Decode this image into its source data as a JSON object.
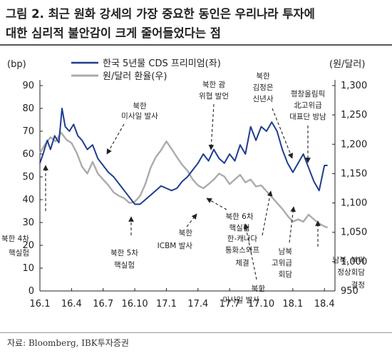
{
  "figure": {
    "title_line1": "그림 2. 최근 원화 강세의 가장 중요한 동인은 우리나라 투자에",
    "title_line2": "대한 심리적 불안감이 크게 줄어들었다는 점",
    "source": "자료: Bloomberg, IBK투자증권"
  },
  "chart_data": {
    "type": "line",
    "x_tick_labels": [
      "16.1",
      "16.4",
      "16.7",
      "16.10",
      "17.1",
      "17.4",
      "17.7",
      "17.10",
      "18.1",
      "18.4"
    ],
    "x_tick_months": [
      0,
      3,
      6,
      9,
      12,
      15,
      18,
      21,
      24,
      27
    ],
    "xlim_months": [
      0,
      28
    ],
    "left_axis": {
      "unit": "(bp)",
      "ylim": [
        0,
        90
      ],
      "ticks": [
        0,
        10,
        20,
        30,
        40,
        50,
        60,
        70,
        80,
        90
      ]
    },
    "right_axis": {
      "unit": "(원/달러)",
      "ylim": [
        950,
        1300
      ],
      "ticks": [
        950,
        1000,
        1050,
        1100,
        1150,
        1200,
        1250,
        1300
      ],
      "tick_labels": [
        "950",
        "1,000",
        "1,050",
        "1,100",
        "1,150",
        "1,200",
        "1,250",
        "1,300"
      ]
    },
    "grid": false,
    "legend_position": "top-left",
    "series": [
      {
        "name": "한국 5년물 CDS 프리미엄(좌)",
        "axis": "left",
        "color": "#1f3d8f",
        "points": [
          [
            0,
            56
          ],
          [
            0.3,
            60
          ],
          [
            0.7,
            66
          ],
          [
            1.0,
            62
          ],
          [
            1.4,
            68
          ],
          [
            1.8,
            65
          ],
          [
            2.1,
            80
          ],
          [
            2.4,
            72
          ],
          [
            2.8,
            70
          ],
          [
            3.2,
            73
          ],
          [
            3.6,
            68
          ],
          [
            4.0,
            66
          ],
          [
            4.5,
            62
          ],
          [
            5.0,
            64
          ],
          [
            5.5,
            58
          ],
          [
            6.0,
            55
          ],
          [
            6.5,
            52
          ],
          [
            7.0,
            50
          ],
          [
            7.5,
            47
          ],
          [
            8.0,
            44
          ],
          [
            8.5,
            41
          ],
          [
            9.0,
            38
          ],
          [
            9.5,
            38
          ],
          [
            10.0,
            40
          ],
          [
            10.5,
            42
          ],
          [
            11.0,
            44
          ],
          [
            11.5,
            46
          ],
          [
            12.0,
            45
          ],
          [
            12.5,
            44
          ],
          [
            13.0,
            45
          ],
          [
            13.5,
            48
          ],
          [
            14.0,
            50
          ],
          [
            14.5,
            53
          ],
          [
            15.0,
            56
          ],
          [
            15.5,
            60
          ],
          [
            16.0,
            57
          ],
          [
            16.5,
            62
          ],
          [
            17.0,
            58
          ],
          [
            17.5,
            56
          ],
          [
            18.0,
            60
          ],
          [
            18.5,
            57
          ],
          [
            19.0,
            64
          ],
          [
            19.5,
            60
          ],
          [
            20.0,
            72
          ],
          [
            20.5,
            66
          ],
          [
            21.0,
            72
          ],
          [
            21.5,
            70
          ],
          [
            22.0,
            74
          ],
          [
            22.5,
            70
          ],
          [
            23.0,
            62
          ],
          [
            23.5,
            56
          ],
          [
            24.0,
            52
          ],
          [
            24.5,
            56
          ],
          [
            25.0,
            60
          ],
          [
            25.5,
            54
          ],
          [
            26.0,
            48
          ],
          [
            26.5,
            44
          ],
          [
            27.0,
            55
          ],
          [
            27.3,
            55
          ]
        ]
      },
      {
        "name": "원/달러 환율(우)",
        "axis": "right",
        "color": "#ababab",
        "points": [
          [
            0,
            1185
          ],
          [
            0.5,
            1200
          ],
          [
            1.0,
            1212
          ],
          [
            1.5,
            1205
          ],
          [
            2.0,
            1220
          ],
          [
            2.5,
            1208
          ],
          [
            3.0,
            1202
          ],
          [
            3.5,
            1185
          ],
          [
            4.0,
            1162
          ],
          [
            4.5,
            1150
          ],
          [
            5.0,
            1170
          ],
          [
            5.5,
            1150
          ],
          [
            6.0,
            1140
          ],
          [
            6.5,
            1130
          ],
          [
            7.0,
            1118
          ],
          [
            7.5,
            1112
          ],
          [
            8.0,
            1108
          ],
          [
            8.5,
            1100
          ],
          [
            9.0,
            1102
          ],
          [
            9.5,
            1112
          ],
          [
            10.0,
            1132
          ],
          [
            10.5,
            1160
          ],
          [
            11.0,
            1178
          ],
          [
            11.5,
            1190
          ],
          [
            12.0,
            1205
          ],
          [
            12.5,
            1192
          ],
          [
            13.0,
            1178
          ],
          [
            13.5,
            1165
          ],
          [
            14.0,
            1155
          ],
          [
            14.5,
            1140
          ],
          [
            15.0,
            1130
          ],
          [
            15.5,
            1125
          ],
          [
            16.0,
            1132
          ],
          [
            16.5,
            1140
          ],
          [
            17.0,
            1150
          ],
          [
            17.5,
            1145
          ],
          [
            18.0,
            1132
          ],
          [
            18.5,
            1140
          ],
          [
            19.0,
            1148
          ],
          [
            19.5,
            1135
          ],
          [
            20.0,
            1140
          ],
          [
            20.5,
            1128
          ],
          [
            21.0,
            1130
          ],
          [
            21.5,
            1120
          ],
          [
            22.0,
            1110
          ],
          [
            22.5,
            1100
          ],
          [
            23.0,
            1090
          ],
          [
            23.5,
            1078
          ],
          [
            24.0,
            1068
          ],
          [
            24.5,
            1072
          ],
          [
            25.0,
            1068
          ],
          [
            25.5,
            1080
          ],
          [
            26.0,
            1072
          ],
          [
            26.5,
            1065
          ],
          [
            27.0,
            1060
          ],
          [
            27.3,
            1058
          ]
        ]
      }
    ],
    "annotations": [
      "북한 4차 핵실험",
      "북한 5차 핵실험",
      "북한 미사일 발사",
      "북한 ICBM 발사",
      "북한 괌 위협 발언",
      "북한 6차 핵실험",
      "한-캐나다 통화스와프 체결",
      "북한 미사일 발사",
      "북한 김정은 신년사",
      "남북 고위급 회담",
      "평창올림픽 北고위급 대표단 방남",
      "남북, 북미 정상회담 결정"
    ]
  }
}
